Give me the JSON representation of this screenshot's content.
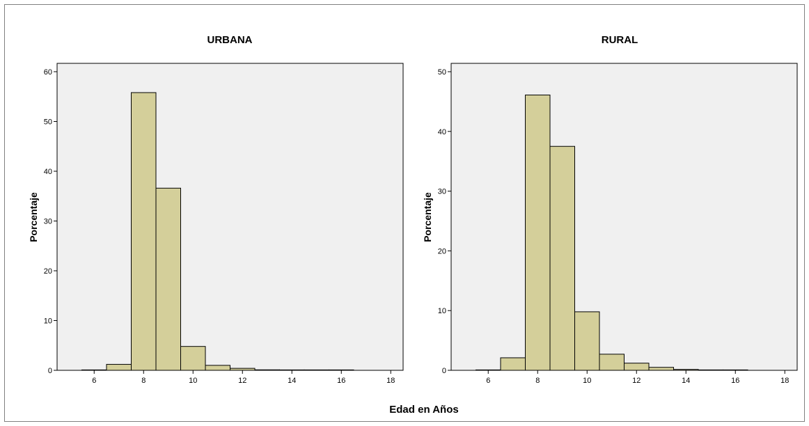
{
  "shared_xlabel": "Edad en Años",
  "colors": {
    "plot_bg": "#f0f0f0",
    "bar_fill": "#d4cf9a",
    "bar_stroke": "#000000"
  },
  "chart_data": [
    {
      "type": "bar",
      "title": "URBANA",
      "ylabel": "Porcentaje",
      "xlabel": "Edad en Años",
      "xlim": [
        4.5,
        18.5
      ],
      "xticks": [
        6,
        8,
        10,
        12,
        14,
        16,
        18
      ],
      "ylim": [
        0,
        60
      ],
      "yticks": [
        0,
        10,
        20,
        30,
        40,
        50,
        60
      ],
      "bin_width": 1,
      "x": [
        6,
        7,
        8,
        9,
        10,
        11,
        12,
        13,
        14,
        15,
        16
      ],
      "values": [
        0.0,
        1.2,
        55.8,
        36.6,
        4.8,
        1.0,
        0.4,
        0.1,
        0.05,
        0.03,
        0.02
      ],
      "grid": false,
      "legend": false
    },
    {
      "type": "bar",
      "title": "RURAL",
      "ylabel": "Porcentaje",
      "xlabel": "Edad en Años",
      "xlim": [
        4.5,
        18.5
      ],
      "xticks": [
        6,
        8,
        10,
        12,
        14,
        16,
        18
      ],
      "ylim": [
        0,
        50
      ],
      "yticks": [
        0,
        10,
        20,
        30,
        40,
        50
      ],
      "bin_width": 1,
      "x": [
        6,
        7,
        8,
        9,
        10,
        11,
        12,
        13,
        14,
        15,
        16
      ],
      "values": [
        0.0,
        2.1,
        46.1,
        37.5,
        9.8,
        2.7,
        1.2,
        0.5,
        0.15,
        0.05,
        0.03
      ],
      "grid": false,
      "legend": false
    }
  ]
}
